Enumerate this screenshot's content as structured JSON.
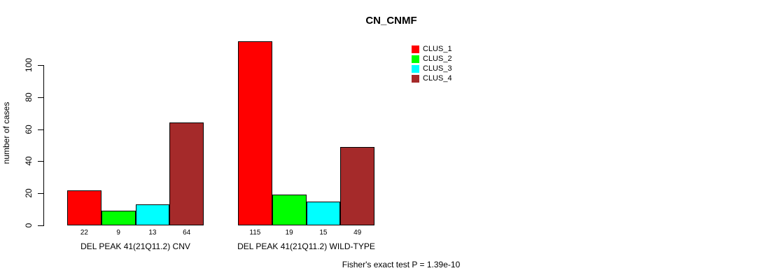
{
  "chart_data": {
    "type": "bar",
    "title": "CN_CNMF",
    "ylabel": "number of cases",
    "annotation": "Fisher's exact test P = 1.39e-10",
    "yticks": [
      0,
      20,
      40,
      60,
      80,
      100
    ],
    "ylim": [
      0,
      115
    ],
    "grid": false,
    "legend_position": "top-right-inside",
    "bar_value_labels_shown": true,
    "series_names": [
      "CLUS_1",
      "CLUS_2",
      "CLUS_3",
      "CLUS_4"
    ],
    "series_colors": [
      "#FF0000",
      "#00FF00",
      "#00FFFF",
      "#A52A2A"
    ],
    "groups": [
      {
        "label": "DEL PEAK 41(21Q11.2) CNV",
        "values": [
          22,
          9,
          13,
          64
        ]
      },
      {
        "label": "DEL PEAK 41(21Q11.2) WILD-TYPE",
        "values": [
          115,
          19,
          15,
          49
        ]
      }
    ]
  }
}
